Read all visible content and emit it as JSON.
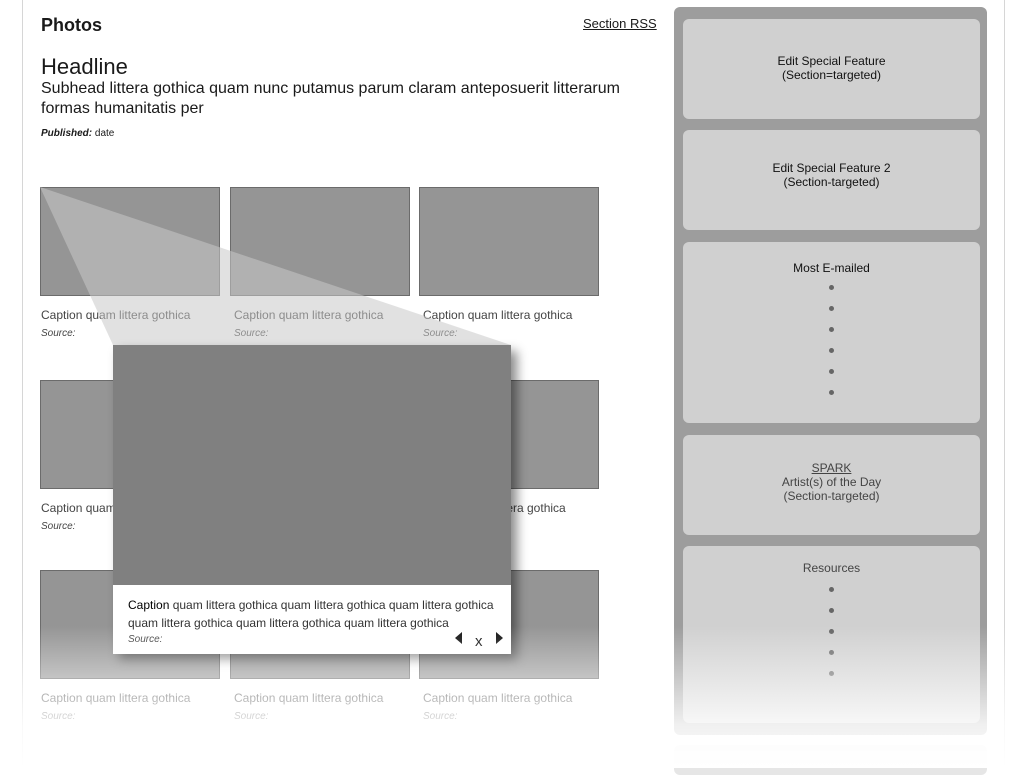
{
  "header": {
    "section_title": "Photos",
    "rss_link": "Section RSS",
    "headline": "Headline",
    "subhead": "Subhead littera gothica quam nunc putamus parum claram anteposuerit litterarum formas humanitatis per",
    "published_label": "Published:",
    "published_value": "date"
  },
  "gallery": {
    "items": [
      {
        "caption": "Caption quam littera gothica",
        "source": "Source:"
      },
      {
        "caption": "Caption quam littera gothica",
        "source": "Source:"
      },
      {
        "caption": "Caption quam littera gothica",
        "source": "Source:"
      },
      {
        "caption": "Caption quam",
        "source": "Source:"
      },
      {
        "caption": "",
        "source": ""
      },
      {
        "caption": "tera gothica",
        "source": ""
      },
      {
        "caption": "Caption quam littera gothica",
        "source": "Source:"
      },
      {
        "caption": "Caption quam littera gothica",
        "source": "Source:"
      },
      {
        "caption": "Caption quam littera gothica",
        "source": "Source:"
      }
    ]
  },
  "lightbox": {
    "caption_bold": "Caption",
    "caption_rest": " quam littera gothica quam littera gothica quam littera gothica quam littera gothica quam littera gothica quam littera gothica",
    "source": "Source:",
    "prev_icon": "left-triangle-icon",
    "close_label": "x",
    "next_icon": "right-triangle-icon"
  },
  "sidebar": {
    "feature1_line1": "Edit Special Feature",
    "feature1_line2": "(Section=targeted)",
    "feature2_line1": "Edit Special Feature 2",
    "feature2_line2": "(Section-targeted)",
    "most_emailed_title": "Most E-mailed",
    "spark_link": "SPARK",
    "spark_line2": "Artist(s) of the Day",
    "spark_line3": "(Section-targeted)",
    "resources_title": "Resources"
  },
  "colors": {
    "thumb": "#959595",
    "lightbox_photo": "#808080",
    "sidebar_bg": "#9d9d9d",
    "panel_bg": "#d0d0d0"
  }
}
